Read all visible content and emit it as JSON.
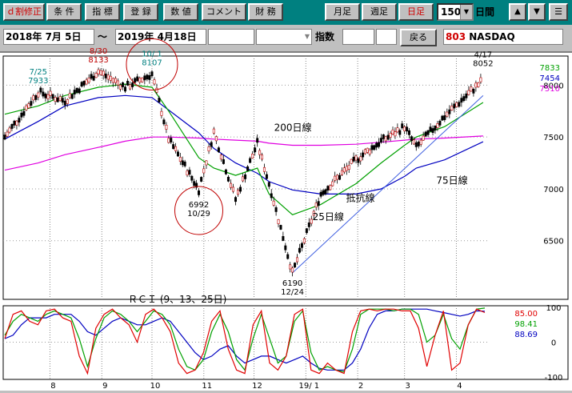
{
  "toolbar": {
    "items": [
      {
        "label": "ｄ割修正",
        "red": true
      },
      {
        "label": "条 件"
      },
      {
        "label": "指 標"
      },
      {
        "label": "登 録"
      },
      {
        "label": "数 値"
      },
      {
        "label": "コメント"
      },
      {
        "label": "財 務"
      }
    ],
    "period_buttons": [
      {
        "label": "月足",
        "red": false
      },
      {
        "label": "週足",
        "red": false
      },
      {
        "label": "日足",
        "red": true
      }
    ],
    "days_value": "150",
    "days_unit": "日間",
    "up_icon": "▲",
    "down_icon": "▼",
    "menu_icon": "☰"
  },
  "range": {
    "start": "2018年 7月 5日",
    "separator": "〜",
    "end": "2019年 4月18日",
    "label": "指数",
    "back_button": "戻る",
    "code": "803",
    "name": "NASDAQ"
  },
  "colors": {
    "price": "#c00000",
    "ma25": "#00a000",
    "ma75": "#0000c0",
    "ma200": "#e000e0",
    "support": "#4060e0"
  },
  "chart_data": {
    "type": "line",
    "price_axis": {
      "ticks": [
        "8000",
        "7500",
        "7000",
        "6500"
      ],
      "ylim": [
        5950,
        8250
      ]
    },
    "x_labels": [
      "8",
      "9",
      "10",
      "11",
      "12",
      "19/ 1",
      "2",
      "3",
      "4"
    ],
    "price_dates": [
      "2018-07-05",
      "2018-07-25",
      "2018-08-10",
      "2018-08-30",
      "2018-09-15",
      "2018-10-01",
      "2018-10-11",
      "2018-10-29",
      "2018-11-07",
      "2018-11-20",
      "2018-12-03",
      "2018-12-10",
      "2018-12-24",
      "2019-01-10",
      "2019-01-31",
      "2019-02-15",
      "2019-03-01",
      "2019-03-08",
      "2019-03-25",
      "2019-04-17"
    ],
    "price_values": [
      7500,
      7933,
      7850,
      8133,
      7980,
      8107,
      7480,
      6992,
      7550,
      6900,
      7440,
      7050,
      6190,
      6950,
      7280,
      7460,
      7600,
      7400,
      7700,
      8052
    ],
    "ma_values": {
      "ma25": [
        7720,
        7800,
        7900,
        7980,
        8010,
        7980,
        7750,
        7300,
        7200,
        7130,
        7200,
        6950,
        6750,
        6850,
        7050,
        7250,
        7420,
        7500,
        7600,
        7833
      ],
      "ma75": [
        7480,
        7650,
        7800,
        7880,
        7900,
        7880,
        7760,
        7540,
        7390,
        7250,
        7150,
        7070,
        6990,
        6950,
        6950,
        7000,
        7120,
        7200,
        7280,
        7454
      ],
      "ma200": [
        7180,
        7250,
        7330,
        7400,
        7460,
        7500,
        7500,
        7490,
        7480,
        7470,
        7460,
        7440,
        7420,
        7420,
        7430,
        7450,
        7470,
        7480,
        7490,
        7510
      ]
    },
    "support_line": {
      "from": {
        "x": "2018-12-24",
        "y": 6190
      },
      "to": {
        "x": "2019-04-17",
        "y": 7900
      }
    },
    "annotations": [
      {
        "label": "7/25",
        "value": "7933"
      },
      {
        "label": "8/30",
        "value": "8133"
      },
      {
        "label": "10/ 1",
        "value": "8107"
      },
      {
        "label": "6992",
        "value": "10/29"
      },
      {
        "label": "6190",
        "value": "12/24"
      },
      {
        "label": "4/17",
        "value": "8052"
      }
    ],
    "line_labels": {
      "ma200": "200日線",
      "ma75": "75日線",
      "ma25": "25日線",
      "support": "抵抗線"
    },
    "legend_values": {
      "ma25": "7833",
      "ma75": "7454",
      "ma200": "7510"
    },
    "rci": {
      "title": "ＲＣＩ (9、13、25日)",
      "ticks": [
        "100",
        "0",
        "-100"
      ],
      "values": {
        "rci9": "85.00",
        "rci13": "98.41",
        "rci25": "88.69"
      },
      "colors": {
        "rci9": "#e00000",
        "rci13": "#00a000",
        "rci25": "#0000c0"
      },
      "series": {
        "rci9": [
          0.1,
          0.8,
          0.9,
          0.6,
          0.5,
          0.9,
          0.95,
          0.7,
          0.6,
          -0.4,
          -0.9,
          0.4,
          0.8,
          0.95,
          0.7,
          0.5,
          0.0,
          0.8,
          0.95,
          0.7,
          0.3,
          -0.6,
          -0.9,
          -0.8,
          -0.3,
          0.6,
          0.9,
          -0.2,
          -0.8,
          -0.9,
          0.5,
          0.9,
          -0.6,
          -0.8,
          -0.4,
          0.8,
          0.95,
          -0.8,
          -0.9,
          -0.6,
          -0.8,
          -0.9,
          0.3,
          0.9,
          0.95,
          0.9,
          0.95,
          0.95,
          0.9,
          0.9,
          0.4,
          -0.7,
          0.2,
          0.9,
          -0.8,
          -0.6,
          0.5,
          0.95,
          0.85
        ],
        "rci13": [
          0.2,
          0.6,
          0.8,
          0.7,
          0.6,
          0.8,
          0.9,
          0.8,
          0.7,
          0.1,
          -0.7,
          0.1,
          0.7,
          0.9,
          0.8,
          0.6,
          0.3,
          0.6,
          0.9,
          0.8,
          0.5,
          -0.2,
          -0.7,
          -0.8,
          -0.5,
          0.3,
          0.8,
          0.3,
          -0.5,
          -0.8,
          0.1,
          0.8,
          0.1,
          -0.6,
          -0.4,
          0.6,
          0.9,
          -0.3,
          -0.8,
          -0.7,
          -0.8,
          -0.85,
          -0.2,
          0.8,
          0.95,
          0.95,
          0.95,
          0.9,
          0.95,
          0.95,
          0.8,
          0.0,
          0.2,
          0.8,
          0.1,
          -0.2,
          0.5,
          0.95,
          0.98
        ],
        "rci25": [
          0.1,
          0.2,
          0.5,
          0.7,
          0.7,
          0.7,
          0.8,
          0.8,
          0.8,
          0.6,
          0.3,
          0.2,
          0.4,
          0.6,
          0.7,
          0.6,
          0.5,
          0.5,
          0.6,
          0.7,
          0.6,
          0.3,
          0.0,
          -0.3,
          -0.5,
          -0.4,
          -0.2,
          -0.1,
          -0.4,
          -0.6,
          -0.5,
          -0.4,
          -0.4,
          -0.5,
          -0.6,
          -0.5,
          -0.4,
          -0.6,
          -0.75,
          -0.8,
          -0.8,
          -0.8,
          -0.6,
          -0.2,
          0.4,
          0.8,
          0.9,
          0.9,
          0.95,
          0.95,
          0.95,
          0.95,
          0.9,
          0.85,
          0.8,
          0.75,
          0.8,
          0.9,
          0.89
        ]
      }
    }
  }
}
